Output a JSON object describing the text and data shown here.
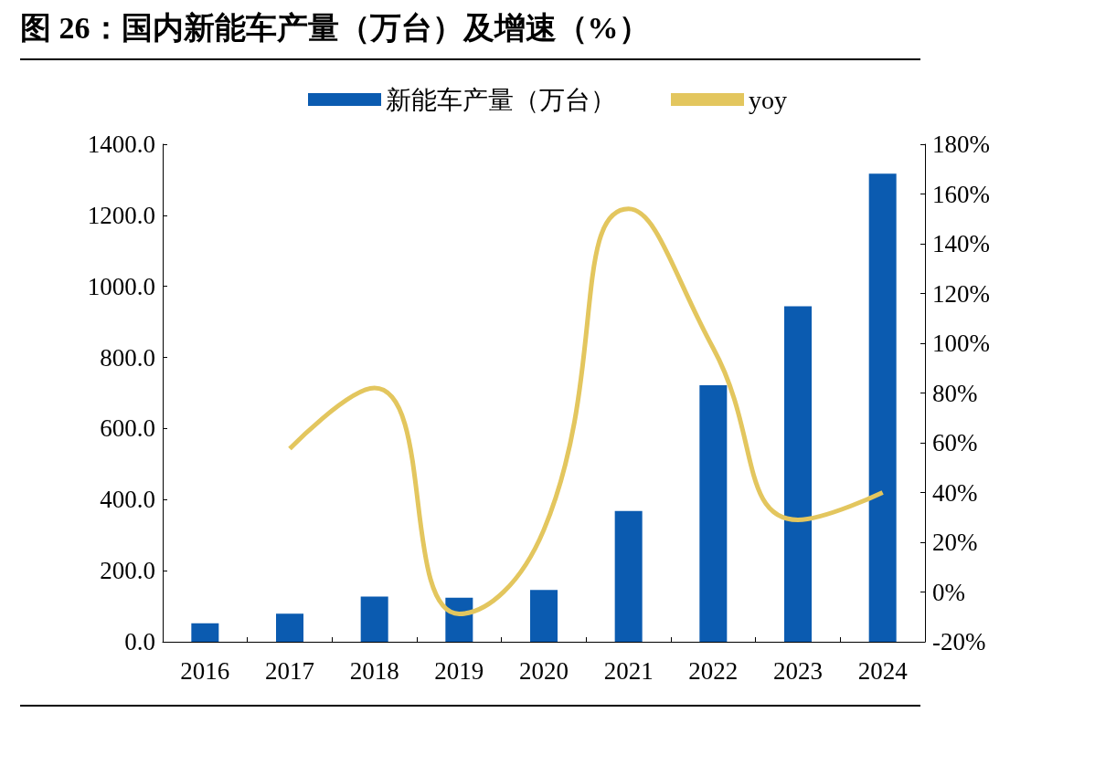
{
  "chart_data": {
    "type": "bar",
    "title": "图 26：国内新能车产量（万台）及增速（%）",
    "categories": [
      "2016",
      "2017",
      "2018",
      "2019",
      "2020",
      "2021",
      "2022",
      "2023",
      "2024"
    ],
    "series": [
      {
        "name": "新能车产量（万台）",
        "color": "#0b5bb0",
        "values": [
          52,
          79,
          127,
          124,
          146,
          368,
          722,
          944,
          1317
        ]
      },
      {
        "name": "yoy",
        "type": "line",
        "axis": "y2",
        "color": "#e3c65e",
        "marker": "none",
        "values": [
          null,
          57.6,
          82,
          -8.8,
          25,
          154,
          98,
          29,
          40
        ]
      }
    ],
    "ylim": [
      0,
      1400
    ],
    "yticks": [
      {
        "value": 0,
        "label": "0.0"
      },
      {
        "value": 200,
        "label": "200.0"
      },
      {
        "value": 400,
        "label": "400.0"
      },
      {
        "value": 600,
        "label": "600.0"
      },
      {
        "value": 800,
        "label": "800.0"
      },
      {
        "value": 1000,
        "label": "1000.0"
      },
      {
        "value": 1200,
        "label": "1200.0"
      },
      {
        "value": 1400,
        "label": "1400.0"
      }
    ],
    "y2lim": [
      -20,
      180
    ],
    "y2ticks": [
      {
        "value": -20,
        "label": "-20%"
      },
      {
        "value": 0,
        "label": "0%"
      },
      {
        "value": 20,
        "label": "20%"
      },
      {
        "value": 40,
        "label": "40%"
      },
      {
        "value": 60,
        "label": "60%"
      },
      {
        "value": 80,
        "label": "80%"
      },
      {
        "value": 100,
        "label": "100%"
      },
      {
        "value": 120,
        "label": "120%"
      },
      {
        "value": 140,
        "label": "140%"
      },
      {
        "value": 160,
        "label": "160%"
      },
      {
        "value": 180,
        "label": "180%"
      }
    ],
    "legend": "top",
    "grid": false
  }
}
